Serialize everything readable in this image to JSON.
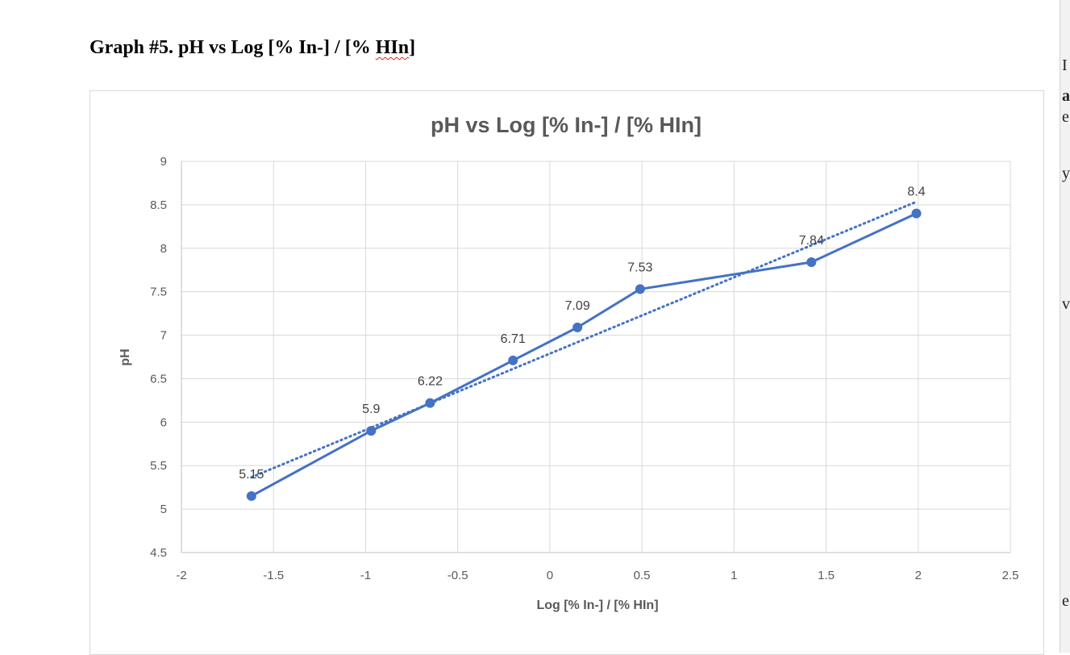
{
  "document": {
    "heading_prefix": "Graph #5. pH vs Log [% In-] / [% ",
    "heading_flagged": "HIn",
    "heading_suffix": "]"
  },
  "chart_data": {
    "type": "scatter",
    "title": "pH vs Log [% In-] / [% HIn]",
    "xlabel": "Log [% In-] / [% HIn]",
    "ylabel": "pH",
    "xlim": [
      -2,
      2.5
    ],
    "ylim": [
      4.5,
      9
    ],
    "x_ticks": [
      -2,
      -1.5,
      -1,
      -0.5,
      0,
      0.5,
      1,
      1.5,
      2,
      2.5
    ],
    "y_ticks": [
      4.5,
      5,
      5.5,
      6,
      6.5,
      7,
      7.5,
      8,
      8.5,
      9
    ],
    "x_tick_labels": [
      "-2",
      "-1.5",
      "-1",
      "-0.5",
      "0",
      "0.5",
      "1",
      "1.5",
      "2",
      "2.5"
    ],
    "y_tick_labels": [
      "4.5",
      "5",
      "5.5",
      "6",
      "6.5",
      "7",
      "7.5",
      "8",
      "8.5",
      "9"
    ],
    "grid": true,
    "legend": "none",
    "series": [
      {
        "color": "#4472c4",
        "style": "line-with-markers",
        "x": [
          -1.62,
          -0.97,
          -0.65,
          -0.2,
          0.15,
          0.49,
          1.42,
          1.99
        ],
        "y": [
          5.15,
          5.9,
          6.22,
          6.71,
          7.09,
          7.53,
          7.84,
          8.4
        ],
        "data_labels": [
          "5.15",
          "5.9",
          "6.22",
          "6.71",
          "7.09",
          "7.53",
          "7.84",
          "8.4"
        ]
      }
    ],
    "trendline": {
      "type": "linear",
      "style": "dotted",
      "color": "#4472c4",
      "x_range": [
        -1.62,
        1.99
      ]
    }
  }
}
